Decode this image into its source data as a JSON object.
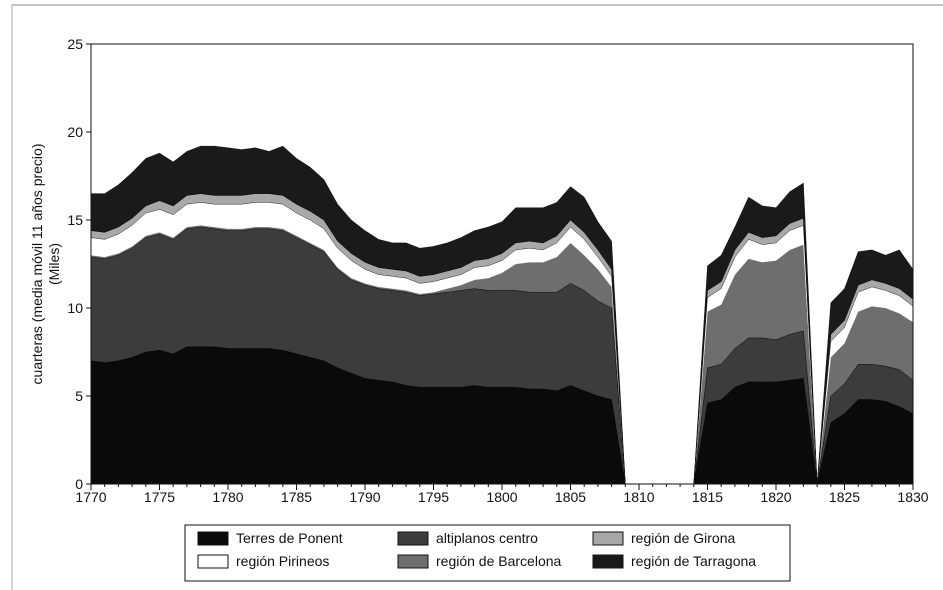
{
  "chart_data": {
    "type": "area",
    "stacked": true,
    "ylabel_lines": [
      "cuarteras (media móvil 11 años precio)",
      "(Miles)"
    ],
    "ylim": [
      0,
      25
    ],
    "xlim": [
      1770,
      1830
    ],
    "yticks": [
      0,
      5,
      10,
      15,
      20,
      25
    ],
    "xticks": [
      1770,
      1775,
      1780,
      1785,
      1790,
      1795,
      1800,
      1805,
      1810,
      1815,
      1820,
      1825,
      1830
    ],
    "grid": false,
    "legend_position": "bottom",
    "series": [
      {
        "name": "Terres de Ponent",
        "color": "#0a0a0a",
        "segments": [
          {
            "x": [
              1770,
              1771,
              1772,
              1773,
              1774,
              1775,
              1776,
              1777,
              1778,
              1779,
              1780,
              1781,
              1782,
              1783,
              1784,
              1785,
              1786,
              1787,
              1788,
              1789,
              1790,
              1791,
              1792,
              1793,
              1794,
              1795,
              1796,
              1797,
              1798,
              1799,
              1800,
              1801,
              1802,
              1803,
              1804,
              1805,
              1806,
              1807,
              1808,
              1809
            ],
            "values": [
              7.0,
              6.9,
              7.0,
              7.2,
              7.5,
              7.6,
              7.4,
              7.8,
              7.8,
              7.8,
              7.7,
              7.7,
              7.7,
              7.7,
              7.6,
              7.4,
              7.2,
              7.0,
              6.6,
              6.3,
              6.0,
              5.9,
              5.8,
              5.6,
              5.5,
              5.5,
              5.5,
              5.5,
              5.6,
              5.5,
              5.5,
              5.5,
              5.4,
              5.4,
              5.3,
              5.6,
              5.3,
              5.0,
              4.8,
              0
            ]
          },
          {
            "x": [
              1814,
              1815,
              1816,
              1817,
              1818,
              1819,
              1820,
              1821,
              1822,
              1823
            ],
            "values": [
              0,
              4.6,
              4.8,
              5.5,
              5.8,
              5.8,
              5.8,
              5.9,
              6.0,
              0
            ]
          },
          {
            "x": [
              1823,
              1824,
              1825,
              1826,
              1827,
              1828,
              1829,
              1830
            ],
            "values": [
              0,
              3.5,
              4.0,
              4.8,
              4.8,
              4.7,
              4.4,
              4.0
            ]
          }
        ]
      },
      {
        "name": "altiplanos centro",
        "color": "#3c3c3c",
        "segments": [
          {
            "x": [
              1770,
              1771,
              1772,
              1773,
              1774,
              1775,
              1776,
              1777,
              1778,
              1779,
              1780,
              1781,
              1782,
              1783,
              1784,
              1785,
              1786,
              1787,
              1788,
              1789,
              1790,
              1791,
              1792,
              1793,
              1794,
              1795,
              1796,
              1797,
              1798,
              1799,
              1800,
              1801,
              1802,
              1803,
              1804,
              1805,
              1806,
              1807,
              1808,
              1809
            ],
            "values": [
              5.9,
              5.9,
              6.0,
              6.2,
              6.5,
              6.6,
              6.5,
              6.7,
              6.8,
              6.7,
              6.7,
              6.7,
              6.8,
              6.8,
              6.8,
              6.6,
              6.4,
              6.2,
              5.6,
              5.3,
              5.3,
              5.2,
              5.2,
              5.3,
              5.2,
              5.3,
              5.4,
              5.5,
              5.5,
              5.5,
              5.5,
              5.5,
              5.5,
              5.5,
              5.6,
              5.8,
              5.7,
              5.4,
              5.2,
              0
            ]
          },
          {
            "x": [
              1814,
              1815,
              1816,
              1817,
              1818,
              1819,
              1820,
              1821,
              1822,
              1823
            ],
            "values": [
              0,
              2.0,
              2.0,
              2.2,
              2.5,
              2.5,
              2.4,
              2.6,
              2.7,
              0
            ]
          },
          {
            "x": [
              1823,
              1824,
              1825,
              1826,
              1827,
              1828,
              1829,
              1830
            ],
            "values": [
              0,
              1.5,
              1.7,
              2.0,
              2.0,
              2.0,
              2.1,
              1.9
            ]
          }
        ]
      },
      {
        "name": "región de Barcelona",
        "color": "#6e6e6e",
        "segments": [
          {
            "x": [
              1770,
              1771,
              1772,
              1773,
              1774,
              1775,
              1776,
              1777,
              1778,
              1779,
              1780,
              1781,
              1782,
              1783,
              1784,
              1785,
              1786,
              1787,
              1788,
              1789,
              1790,
              1791,
              1792,
              1793,
              1794,
              1795,
              1796,
              1797,
              1798,
              1799,
              1800,
              1801,
              1802,
              1803,
              1804,
              1805,
              1806,
              1807,
              1808,
              1809
            ],
            "values": [
              0.1,
              0.1,
              0.1,
              0.1,
              0.1,
              0.1,
              0.1,
              0.1,
              0.1,
              0.1,
              0.1,
              0.1,
              0.1,
              0.1,
              0.1,
              0.1,
              0.1,
              0.1,
              0.1,
              0.1,
              0.1,
              0.1,
              0.1,
              0.1,
              0.1,
              0.1,
              0.2,
              0.3,
              0.5,
              0.7,
              1.0,
              1.5,
              1.7,
              1.7,
              2.0,
              2.3,
              2.0,
              1.8,
              1.2,
              0
            ]
          },
          {
            "x": [
              1814,
              1815,
              1816,
              1817,
              1818,
              1819,
              1820,
              1821,
              1822,
              1823
            ],
            "values": [
              0,
              3.2,
              3.4,
              4.2,
              4.5,
              4.3,
              4.5,
              4.8,
              4.9,
              0
            ]
          },
          {
            "x": [
              1823,
              1824,
              1825,
              1826,
              1827,
              1828,
              1829,
              1830
            ],
            "values": [
              0,
              2.2,
              2.3,
              3.0,
              3.3,
              3.3,
              3.2,
              3.3
            ]
          }
        ]
      },
      {
        "name": "región Pirineos",
        "color": "#ffffff",
        "segments": [
          {
            "x": [
              1770,
              1771,
              1772,
              1773,
              1774,
              1775,
              1776,
              1777,
              1778,
              1779,
              1780,
              1781,
              1782,
              1783,
              1784,
              1785,
              1786,
              1787,
              1788,
              1789,
              1790,
              1791,
              1792,
              1793,
              1794,
              1795,
              1796,
              1797,
              1798,
              1799,
              1800,
              1801,
              1802,
              1803,
              1804,
              1805,
              1806,
              1807,
              1808,
              1809
            ],
            "values": [
              1.0,
              1.0,
              1.1,
              1.2,
              1.3,
              1.3,
              1.3,
              1.3,
              1.3,
              1.3,
              1.4,
              1.4,
              1.4,
              1.4,
              1.4,
              1.3,
              1.3,
              1.2,
              1.1,
              1.0,
              0.8,
              0.7,
              0.7,
              0.7,
              0.6,
              0.6,
              0.6,
              0.6,
              0.7,
              0.7,
              0.7,
              0.8,
              0.8,
              0.7,
              0.8,
              0.9,
              0.9,
              0.7,
              0.6,
              0
            ]
          },
          {
            "x": [
              1814,
              1815,
              1816,
              1817,
              1818,
              1819,
              1820,
              1821,
              1822,
              1823
            ],
            "values": [
              0,
              0.8,
              0.9,
              1.0,
              1.1,
              1.0,
              1.0,
              1.1,
              1.1,
              0
            ]
          },
          {
            "x": [
              1823,
              1824,
              1825,
              1826,
              1827,
              1828,
              1829,
              1830
            ],
            "values": [
              0,
              0.9,
              0.9,
              1.1,
              1.1,
              1.0,
              1.0,
              0.9
            ]
          }
        ]
      },
      {
        "name": "región de Girona",
        "color": "#a8a8a8",
        "segments": [
          {
            "x": [
              1770,
              1771,
              1772,
              1773,
              1774,
              1775,
              1776,
              1777,
              1778,
              1779,
              1780,
              1781,
              1782,
              1783,
              1784,
              1785,
              1786,
              1787,
              1788,
              1789,
              1790,
              1791,
              1792,
              1793,
              1794,
              1795,
              1796,
              1797,
              1798,
              1799,
              1800,
              1801,
              1802,
              1803,
              1804,
              1805,
              1806,
              1807,
              1808,
              1809
            ],
            "values": [
              0.4,
              0.4,
              0.4,
              0.4,
              0.4,
              0.5,
              0.5,
              0.5,
              0.5,
              0.5,
              0.5,
              0.5,
              0.5,
              0.5,
              0.5,
              0.5,
              0.5,
              0.5,
              0.4,
              0.4,
              0.4,
              0.4,
              0.4,
              0.4,
              0.4,
              0.4,
              0.4,
              0.4,
              0.4,
              0.4,
              0.4,
              0.4,
              0.4,
              0.4,
              0.4,
              0.4,
              0.4,
              0.4,
              0.4,
              0
            ]
          },
          {
            "x": [
              1814,
              1815,
              1816,
              1817,
              1818,
              1819,
              1820,
              1821,
              1822,
              1823
            ],
            "values": [
              0,
              0.4,
              0.4,
              0.4,
              0.4,
              0.4,
              0.4,
              0.4,
              0.4,
              0
            ]
          },
          {
            "x": [
              1823,
              1824,
              1825,
              1826,
              1827,
              1828,
              1829,
              1830
            ],
            "values": [
              0,
              0.4,
              0.4,
              0.4,
              0.4,
              0.4,
              0.4,
              0.4
            ]
          }
        ]
      },
      {
        "name": "región de Tarragona",
        "color": "#1a1a1a",
        "segments": [
          {
            "x": [
              1770,
              1771,
              1772,
              1773,
              1774,
              1775,
              1776,
              1777,
              1778,
              1779,
              1780,
              1781,
              1782,
              1783,
              1784,
              1785,
              1786,
              1787,
              1788,
              1789,
              1790,
              1791,
              1792,
              1793,
              1794,
              1795,
              1796,
              1797,
              1798,
              1799,
              1800,
              1801,
              1802,
              1803,
              1804,
              1805,
              1806,
              1807,
              1808,
              1809
            ],
            "values": [
              2.1,
              2.2,
              2.4,
              2.6,
              2.7,
              2.7,
              2.5,
              2.5,
              2.7,
              2.8,
              2.7,
              2.6,
              2.6,
              2.4,
              2.8,
              2.6,
              2.5,
              2.3,
              2.1,
              1.9,
              1.8,
              1.6,
              1.5,
              1.6,
              1.6,
              1.6,
              1.6,
              1.7,
              1.7,
              1.8,
              1.8,
              2.0,
              1.9,
              2.0,
              1.9,
              1.9,
              2.0,
              1.6,
              1.6,
              0
            ]
          },
          {
            "x": [
              1814,
              1815,
              1816,
              1817,
              1818,
              1819,
              1820,
              1821,
              1822,
              1823
            ],
            "values": [
              0,
              1.4,
              1.5,
              1.3,
              2.0,
              1.8,
              1.6,
              1.8,
              2.0,
              0
            ]
          },
          {
            "x": [
              1823,
              1824,
              1825,
              1826,
              1827,
              1828,
              1829,
              1830
            ],
            "values": [
              0,
              1.8,
              1.8,
              1.9,
              1.7,
              1.6,
              2.2,
              1.7
            ]
          }
        ]
      }
    ],
    "legend_order": [
      "Terres de Ponent",
      "altiplanos centro",
      "región de Girona",
      "región Pirineos",
      "región de Barcelona",
      "región de Tarragona"
    ]
  }
}
